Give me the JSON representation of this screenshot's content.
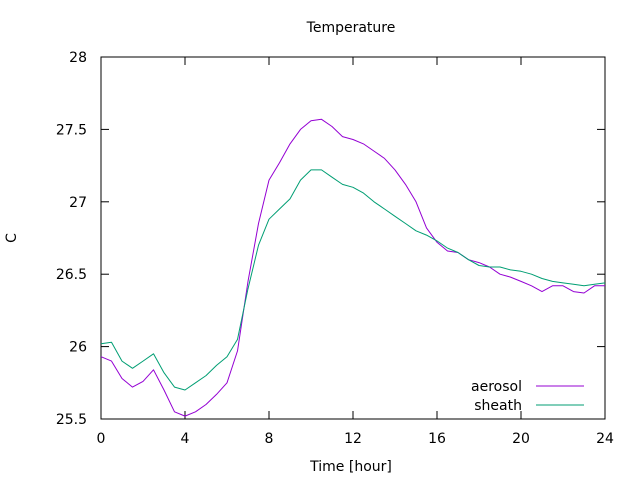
{
  "chart_data": {
    "type": "line",
    "title": "Temperature",
    "xlabel": "Time [hour]",
    "ylabel": "C",
    "xlim": [
      0,
      24
    ],
    "ylim": [
      25.5,
      28
    ],
    "x_ticks": [
      0,
      4,
      8,
      12,
      16,
      20,
      24
    ],
    "x_tick_labels": [
      "0",
      "4",
      "8",
      "12",
      "16",
      "20",
      "24"
    ],
    "y_ticks": [
      25.5,
      26,
      26.5,
      27,
      27.5,
      28
    ],
    "y_tick_labels": [
      "25.5",
      "26",
      "26.5",
      "27",
      "27.5",
      "28"
    ],
    "grid": false,
    "legend_position": "bottom-right",
    "series": [
      {
        "name": "aerosol",
        "color": "#9400d3",
        "x": [
          0,
          0.5,
          1,
          1.5,
          2,
          2.5,
          3,
          3.5,
          4,
          4.5,
          5,
          5.5,
          6,
          6.5,
          7,
          7.5,
          8,
          8.5,
          9,
          9.5,
          10,
          10.5,
          11,
          11.5,
          12,
          12.5,
          13,
          13.5,
          14,
          14.5,
          15,
          15.5,
          16,
          16.5,
          17,
          17.5,
          18,
          18.5,
          19,
          19.5,
          20,
          20.5,
          21,
          21.5,
          22,
          22.5,
          23,
          23.5,
          24
        ],
        "y": [
          25.93,
          25.9,
          25.78,
          25.72,
          25.76,
          25.84,
          25.7,
          25.55,
          25.52,
          25.55,
          25.6,
          25.67,
          25.75,
          25.97,
          26.45,
          26.85,
          27.15,
          27.27,
          27.4,
          27.5,
          27.56,
          27.57,
          27.52,
          27.45,
          27.43,
          27.4,
          27.35,
          27.3,
          27.22,
          27.12,
          27.0,
          26.82,
          26.72,
          26.66,
          26.65,
          26.6,
          26.58,
          26.55,
          26.5,
          26.48,
          26.45,
          26.42,
          26.38,
          26.42,
          26.42,
          26.38,
          26.37,
          26.42,
          26.42
        ]
      },
      {
        "name": "sheath",
        "color": "#009e73",
        "x": [
          0,
          0.5,
          1,
          1.5,
          2,
          2.5,
          3,
          3.5,
          4,
          4.5,
          5,
          5.5,
          6,
          6.5,
          7,
          7.5,
          8,
          8.5,
          9,
          9.5,
          10,
          10.5,
          11,
          11.5,
          12,
          12.5,
          13,
          13.5,
          14,
          14.5,
          15,
          15.5,
          16,
          16.5,
          17,
          17.5,
          18,
          18.5,
          19,
          19.5,
          20,
          20.5,
          21,
          21.5,
          22,
          22.5,
          23,
          23.5,
          24
        ],
        "y": [
          26.02,
          26.03,
          25.9,
          25.85,
          25.9,
          25.95,
          25.82,
          25.72,
          25.7,
          25.75,
          25.8,
          25.87,
          25.93,
          26.05,
          26.4,
          26.7,
          26.88,
          26.95,
          27.02,
          27.15,
          27.22,
          27.22,
          27.17,
          27.12,
          27.1,
          27.06,
          27.0,
          26.95,
          26.9,
          26.85,
          26.8,
          26.77,
          26.73,
          26.68,
          26.65,
          26.6,
          26.56,
          26.55,
          26.55,
          26.53,
          26.52,
          26.5,
          26.47,
          26.45,
          26.44,
          26.43,
          26.42,
          26.43,
          26.44
        ]
      }
    ]
  }
}
